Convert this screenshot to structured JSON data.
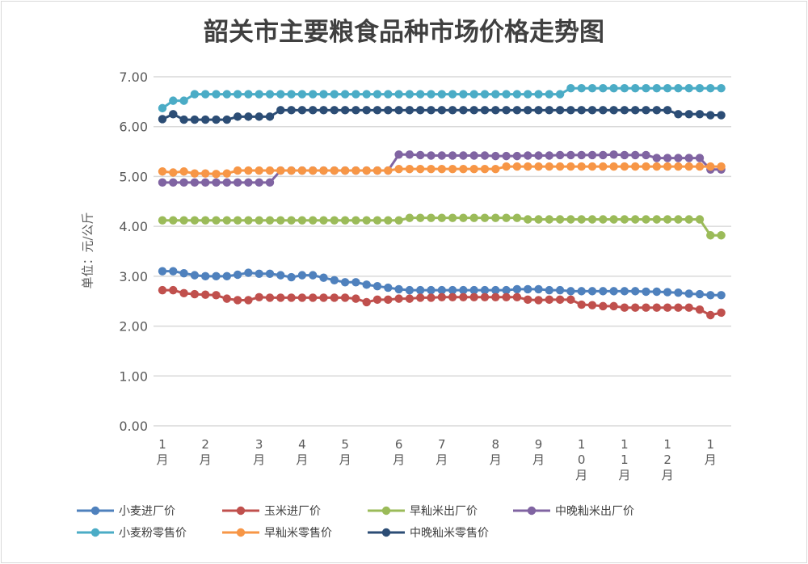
{
  "chart_data": {
    "type": "line",
    "title": "韶关市主要粮食品种市场价格走势图",
    "ylabel": "单位：元/公斤",
    "xlabel": "",
    "ylim": [
      0,
      7
    ],
    "yticks": [
      "0.00",
      "1.00",
      "2.00",
      "3.00",
      "4.00",
      "5.00",
      "6.00",
      "7.00"
    ],
    "grid": true,
    "legend_position": "bottom",
    "point_count": 53,
    "x_tick_labels": [
      {
        "index": 0,
        "label": "1月"
      },
      {
        "index": 4,
        "label": "2月"
      },
      {
        "index": 9,
        "label": "3月"
      },
      {
        "index": 13,
        "label": "4月"
      },
      {
        "index": 17,
        "label": "5月"
      },
      {
        "index": 22,
        "label": "6月"
      },
      {
        "index": 26,
        "label": "7月"
      },
      {
        "index": 31,
        "label": "8月"
      },
      {
        "index": 35,
        "label": "9月"
      },
      {
        "index": 39,
        "label": "10月"
      },
      {
        "index": 43,
        "label": "11月"
      },
      {
        "index": 47,
        "label": "12月"
      },
      {
        "index": 51,
        "label": "1月"
      }
    ],
    "series": [
      {
        "name": "小麦进厂价",
        "color": "#4f81bd",
        "values": [
          3.1,
          3.1,
          3.06,
          3.02,
          3.0,
          3.0,
          3.0,
          3.03,
          3.07,
          3.05,
          3.05,
          3.02,
          2.98,
          3.02,
          3.02,
          2.97,
          2.92,
          2.88,
          2.88,
          2.83,
          2.8,
          2.77,
          2.74,
          2.72,
          2.72,
          2.72,
          2.72,
          2.72,
          2.72,
          2.72,
          2.72,
          2.72,
          2.72,
          2.74,
          2.74,
          2.74,
          2.72,
          2.72,
          2.7,
          2.7,
          2.7,
          2.7,
          2.7,
          2.7,
          2.7,
          2.69,
          2.69,
          2.68,
          2.67,
          2.65,
          2.64,
          2.62,
          2.62
        ]
      },
      {
        "name": "玉米进厂价",
        "color": "#c0504d",
        "values": [
          2.72,
          2.72,
          2.66,
          2.64,
          2.63,
          2.62,
          2.55,
          2.52,
          2.52,
          2.58,
          2.57,
          2.57,
          2.57,
          2.57,
          2.57,
          2.57,
          2.57,
          2.57,
          2.55,
          2.48,
          2.53,
          2.53,
          2.55,
          2.55,
          2.57,
          2.57,
          2.58,
          2.58,
          2.58,
          2.58,
          2.58,
          2.58,
          2.58,
          2.58,
          2.53,
          2.52,
          2.53,
          2.53,
          2.53,
          2.43,
          2.42,
          2.4,
          2.4,
          2.37,
          2.37,
          2.37,
          2.37,
          2.37,
          2.37,
          2.37,
          2.33,
          2.22,
          2.27
        ]
      },
      {
        "name": "早籼米出厂价",
        "color": "#9bbb59",
        "values": [
          4.12,
          4.12,
          4.12,
          4.12,
          4.12,
          4.12,
          4.12,
          4.12,
          4.12,
          4.12,
          4.12,
          4.12,
          4.12,
          4.12,
          4.12,
          4.12,
          4.12,
          4.12,
          4.12,
          4.12,
          4.12,
          4.12,
          4.12,
          4.17,
          4.17,
          4.17,
          4.17,
          4.17,
          4.17,
          4.17,
          4.17,
          4.17,
          4.17,
          4.17,
          4.14,
          4.14,
          4.14,
          4.14,
          4.14,
          4.14,
          4.14,
          4.14,
          4.14,
          4.14,
          4.14,
          4.14,
          4.14,
          4.14,
          4.14,
          4.14,
          4.14,
          3.82,
          3.82
        ]
      },
      {
        "name": "中晚籼米出厂价",
        "color": "#8064a2",
        "values": [
          4.88,
          4.88,
          4.88,
          4.88,
          4.88,
          4.88,
          4.88,
          4.88,
          4.88,
          4.88,
          4.88,
          5.12,
          5.12,
          5.12,
          5.12,
          5.12,
          5.12,
          5.12,
          5.12,
          5.12,
          5.12,
          5.12,
          5.44,
          5.44,
          5.43,
          5.42,
          5.42,
          5.42,
          5.42,
          5.42,
          5.42,
          5.41,
          5.41,
          5.41,
          5.42,
          5.42,
          5.42,
          5.43,
          5.43,
          5.43,
          5.43,
          5.43,
          5.44,
          5.43,
          5.43,
          5.43,
          5.37,
          5.37,
          5.37,
          5.37,
          5.37,
          5.14,
          5.14
        ]
      },
      {
        "name": "小麦粉零售价",
        "color": "#4bacc6",
        "values": [
          6.37,
          6.52,
          6.52,
          6.65,
          6.65,
          6.65,
          6.65,
          6.65,
          6.65,
          6.65,
          6.65,
          6.65,
          6.65,
          6.65,
          6.65,
          6.65,
          6.65,
          6.65,
          6.65,
          6.65,
          6.65,
          6.65,
          6.65,
          6.65,
          6.65,
          6.65,
          6.65,
          6.65,
          6.65,
          6.65,
          6.65,
          6.65,
          6.65,
          6.65,
          6.65,
          6.65,
          6.65,
          6.65,
          6.77,
          6.77,
          6.77,
          6.77,
          6.77,
          6.77,
          6.77,
          6.77,
          6.77,
          6.77,
          6.77,
          6.77,
          6.77,
          6.77,
          6.77
        ]
      },
      {
        "name": "早籼米零售价",
        "color": "#f79646",
        "values": [
          5.1,
          5.08,
          5.1,
          5.06,
          5.06,
          5.05,
          5.06,
          5.12,
          5.12,
          5.12,
          5.12,
          5.12,
          5.12,
          5.12,
          5.12,
          5.12,
          5.12,
          5.12,
          5.12,
          5.12,
          5.12,
          5.12,
          5.15,
          5.15,
          5.15,
          5.15,
          5.15,
          5.15,
          5.15,
          5.15,
          5.15,
          5.15,
          5.2,
          5.2,
          5.2,
          5.2,
          5.2,
          5.2,
          5.2,
          5.2,
          5.2,
          5.2,
          5.2,
          5.2,
          5.2,
          5.2,
          5.2,
          5.2,
          5.2,
          5.2,
          5.2,
          5.2,
          5.2
        ]
      },
      {
        "name": "中晚籼米零售价",
        "color": "#2c4d75",
        "values": [
          6.15,
          6.25,
          6.14,
          6.14,
          6.14,
          6.14,
          6.14,
          6.2,
          6.2,
          6.2,
          6.2,
          6.33,
          6.33,
          6.33,
          6.33,
          6.33,
          6.33,
          6.33,
          6.33,
          6.33,
          6.33,
          6.33,
          6.33,
          6.33,
          6.33,
          6.33,
          6.33,
          6.33,
          6.33,
          6.33,
          6.33,
          6.33,
          6.33,
          6.33,
          6.33,
          6.33,
          6.33,
          6.33,
          6.33,
          6.33,
          6.33,
          6.33,
          6.33,
          6.33,
          6.33,
          6.33,
          6.33,
          6.33,
          6.25,
          6.25,
          6.25,
          6.23,
          6.23
        ]
      }
    ]
  }
}
